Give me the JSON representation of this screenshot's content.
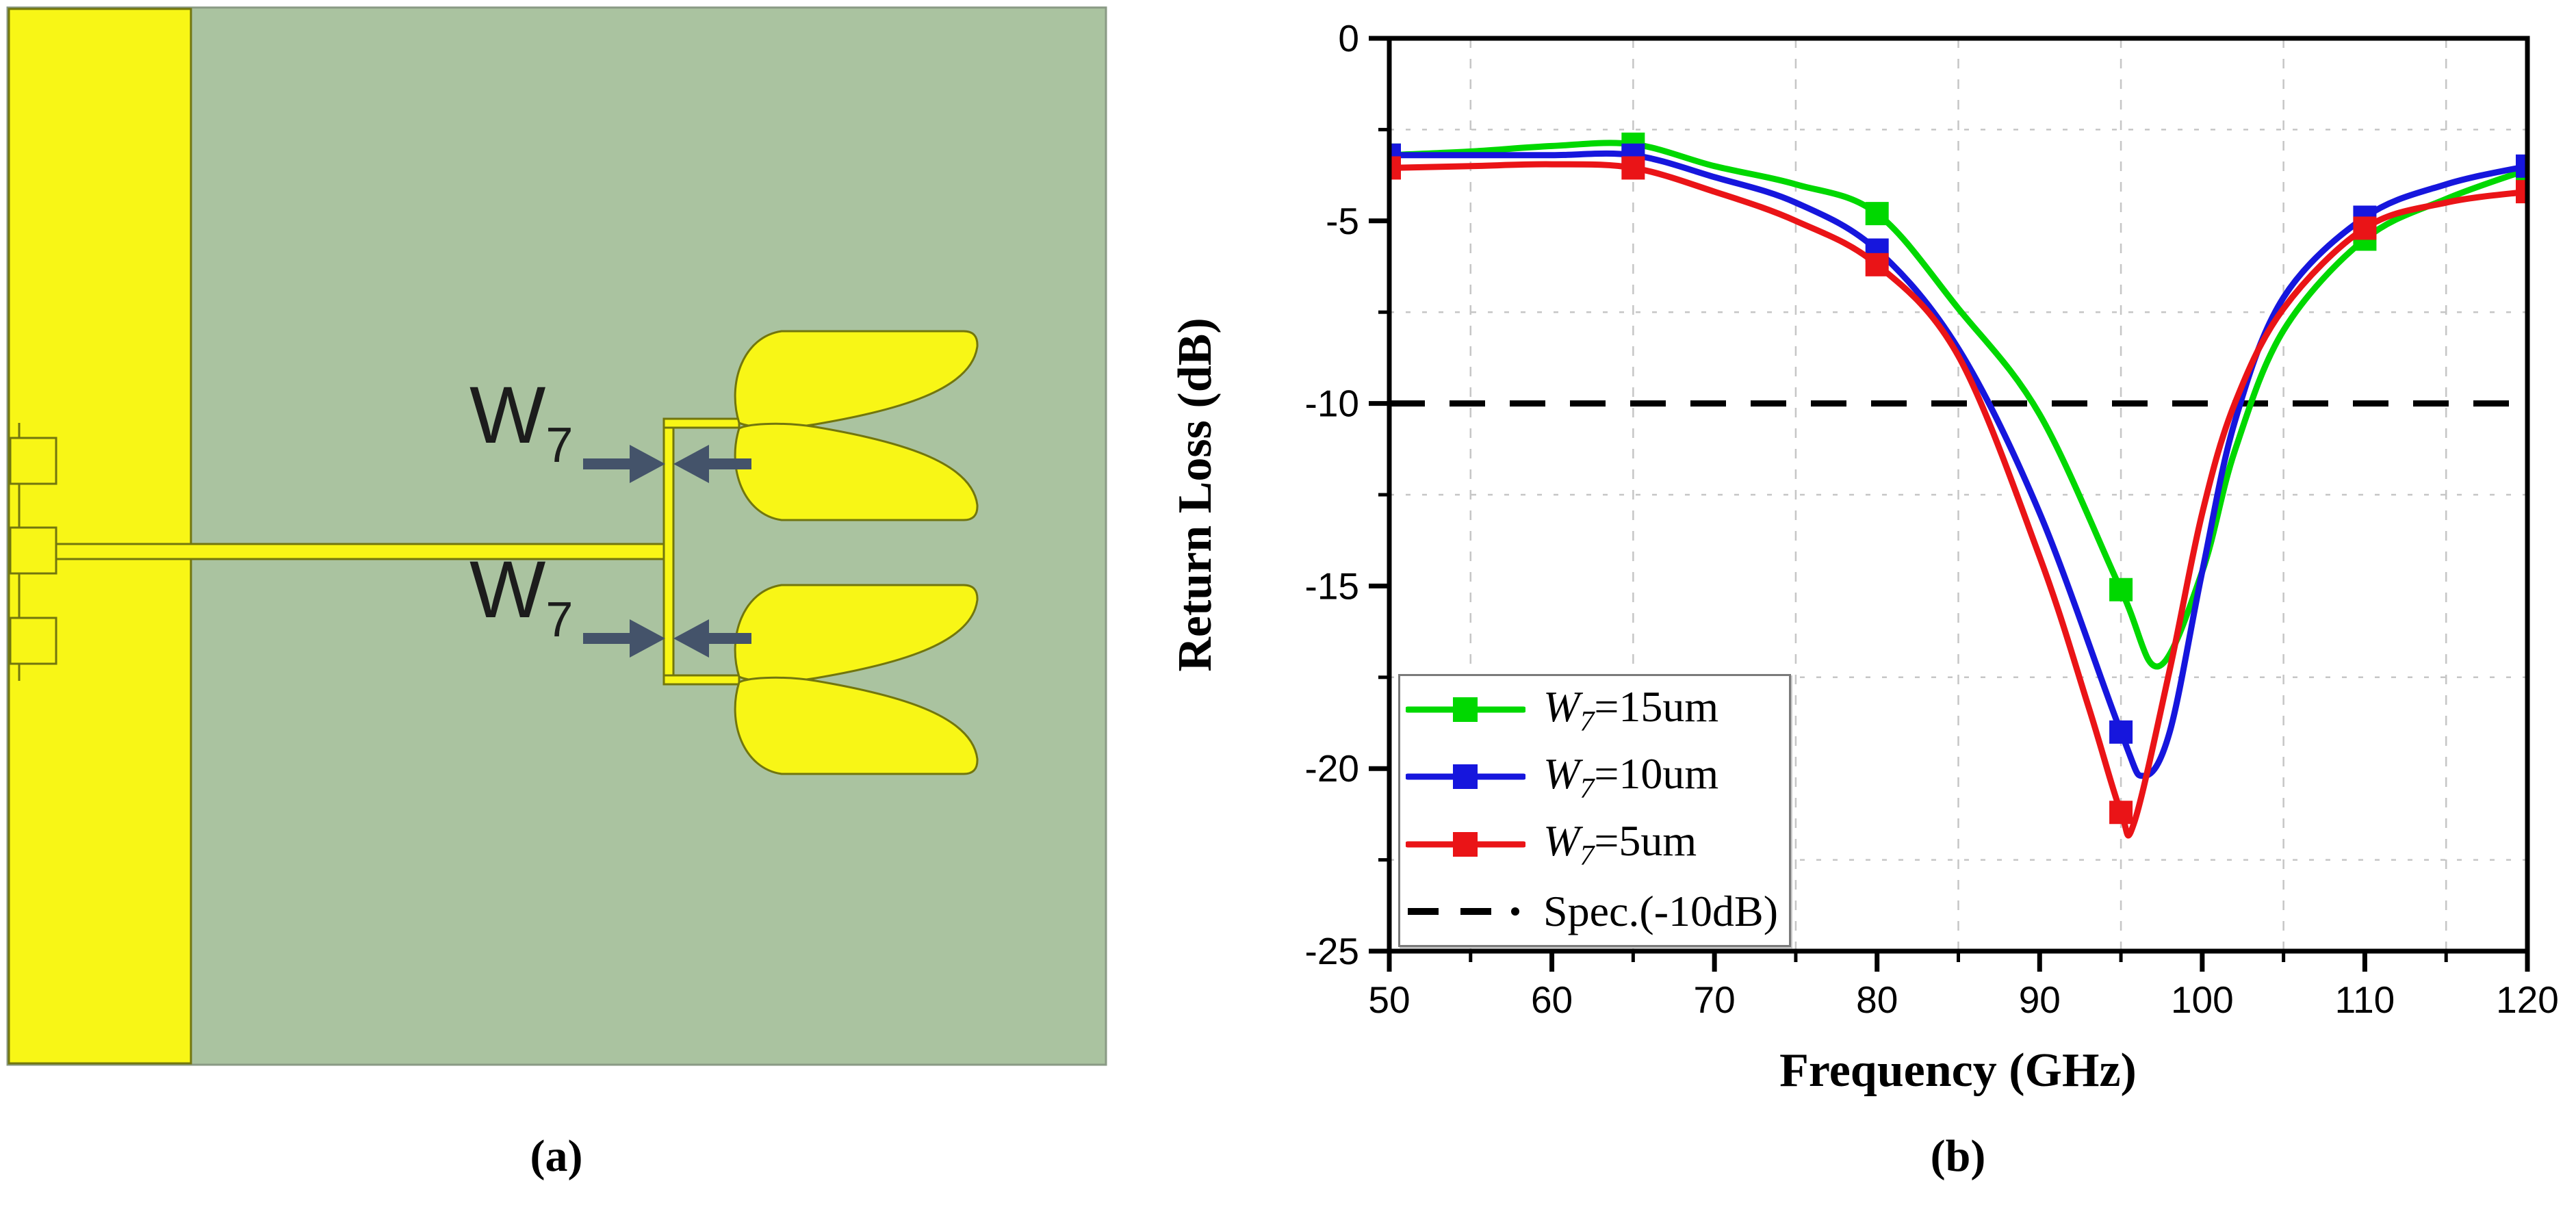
{
  "colors": {
    "yellow": "#f8f616",
    "sage": "#aac3a0",
    "olive": "#72760e",
    "panel_border": "#8a9a85",
    "arrow": "#44536a",
    "grid": "#c6c6c6",
    "axis": "#000000",
    "series_green": "#00d800",
    "series_blue": "#1616dd",
    "series_red": "#ea1417",
    "spec_black": "#000000"
  },
  "panel_a": {
    "caption": "(a)",
    "w7_base": "W",
    "w7_sub": "7"
  },
  "panel_b": {
    "caption": "(b)"
  },
  "chart_data": {
    "type": "line",
    "title": "",
    "xlabel": "Frequency (GHz)",
    "ylabel": "Return Loss (dB)",
    "xlim": [
      50,
      120
    ],
    "ylim": [
      -25,
      0
    ],
    "x_major_ticks": [
      50,
      60,
      70,
      80,
      90,
      100,
      110,
      120
    ],
    "x_tick_labels": [
      "50",
      "60",
      "70",
      "80",
      "90",
      "100",
      "110",
      "120"
    ],
    "x_minor_ticks": [
      55,
      65,
      75,
      85,
      95,
      105,
      115
    ],
    "y_major_ticks": [
      0,
      -5,
      -10,
      -15,
      -20,
      -25
    ],
    "y_tick_labels": [
      "0",
      "-5",
      "-10",
      "-15",
      "-20",
      "-25"
    ],
    "y_minor_ticks": [
      -2.5,
      -7.5,
      -12.5,
      -17.5,
      -22.5
    ],
    "grid": "minor-gridlines-dotted",
    "legend_position": "inside bottom-left",
    "series": [
      {
        "name_prefix": "W",
        "name_sub": "7",
        "name_suffix": "=15um",
        "color_key": "series_green",
        "x": [
          50,
          55,
          60,
          65,
          70,
          75,
          80,
          85,
          90,
          95,
          97.3,
          100,
          102,
          105,
          110,
          115,
          120
        ],
        "y": [
          -3.2,
          -3.1,
          -2.95,
          -2.9,
          -3.5,
          -4.0,
          -4.8,
          -7.4,
          -10.3,
          -15.1,
          -17.2,
          -14.6,
          -11.3,
          -8.0,
          -5.5,
          -4.4,
          -3.6
        ],
        "marker": "square",
        "marker_x": [
          50,
          65,
          80,
          95,
          110,
          120
        ]
      },
      {
        "name_prefix": "W",
        "name_sub": "7",
        "name_suffix": "=10um",
        "color_key": "series_blue",
        "x": [
          50,
          55,
          60,
          65,
          70,
          75,
          80,
          85,
          90,
          95,
          96.4,
          98,
          100,
          102,
          105,
          110,
          115,
          120
        ],
        "y": [
          -3.2,
          -3.2,
          -3.2,
          -3.2,
          -3.8,
          -4.5,
          -5.8,
          -8.5,
          -13.0,
          -19.0,
          -20.2,
          -19.0,
          -14.6,
          -10.5,
          -7.1,
          -4.9,
          -4.0,
          -3.5
        ],
        "marker": "square",
        "marker_x": [
          50,
          65,
          80,
          95,
          110,
          120
        ]
      },
      {
        "name_prefix": "W",
        "name_sub": "7",
        "name_suffix": "=5um",
        "color_key": "series_red",
        "x": [
          50,
          55,
          60,
          65,
          70,
          75,
          80,
          85,
          90,
          93,
          95,
          95.8,
          98,
          100,
          102,
          105,
          110,
          115,
          120
        ],
        "y": [
          -3.55,
          -3.5,
          -3.45,
          -3.55,
          -4.2,
          -5.0,
          -6.2,
          -8.7,
          -14.2,
          -18.3,
          -21.2,
          -21.5,
          -17.3,
          -13.0,
          -10.0,
          -7.4,
          -5.2,
          -4.5,
          -4.2
        ],
        "marker": "square",
        "marker_x": [
          50,
          65,
          80,
          95,
          110,
          120
        ]
      }
    ],
    "spec_line": {
      "label": "Spec.(-10dB)",
      "y": -10,
      "style": "dashed",
      "color_key": "spec_black"
    }
  }
}
